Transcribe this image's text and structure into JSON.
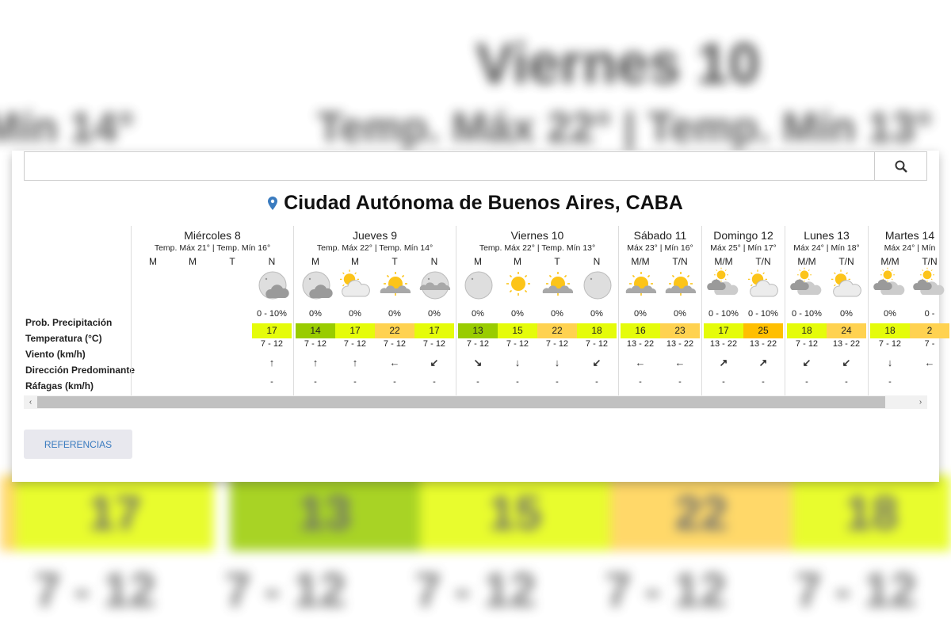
{
  "background": {
    "heading": "Viernes 10",
    "subheading": "Temp. Máx 22° | Temp. Mín 13°",
    "left_text": "Mín 14°",
    "band_values": [
      "17",
      "13",
      "15",
      "22",
      "18"
    ],
    "wind_values": [
      "7 - 12",
      "7 - 12",
      "7 - 12",
      "7 - 12",
      "7 - 12"
    ]
  },
  "search": {
    "value": "",
    "placeholder": "",
    "icon": "search-icon"
  },
  "location": {
    "icon": "map-pin-icon",
    "name": "Ciudad Autónoma de Buenos Aires, CABA",
    "pin_color": "#3a7bbf"
  },
  "row_labels": [
    "Prob. Precipitación",
    "Temperatura (°C)",
    "Viento (km/h)",
    "Dirección Predominante",
    "Ráfagas (km/h)"
  ],
  "temp_colors": {
    "cool": "#99cc00",
    "mild": "#e5fc0a",
    "warm": "#ffd250",
    "hot": "#ffbf00"
  },
  "days": [
    {
      "name": "Miércoles 8",
      "summary": "Temp. Máx 21° | Temp. Mín 16°",
      "periods": [
        {
          "label": "M"
        },
        {
          "label": "M"
        },
        {
          "label": "T"
        },
        {
          "label": "N",
          "icon": "night-cloudy",
          "prob": "0 - 10%",
          "temp": "17",
          "level": "mild",
          "wind": "7 - 12",
          "dir": "↑",
          "gust": "-"
        }
      ]
    },
    {
      "name": "Jueves 9",
      "summary": "Temp. Máx 22° | Temp. Mín 14°",
      "periods": [
        {
          "label": "M",
          "icon": "night-cloudy",
          "prob": "0%",
          "temp": "14",
          "level": "cool",
          "wind": "7 - 12",
          "dir": "↑",
          "gust": "-"
        },
        {
          "label": "M",
          "icon": "sun-cloud",
          "prob": "0%",
          "temp": "17",
          "level": "mild",
          "wind": "7 - 12",
          "dir": "↑",
          "gust": "-"
        },
        {
          "label": "T",
          "icon": "sun-behind-cloud",
          "prob": "0%",
          "temp": "22",
          "level": "warm",
          "wind": "7 - 12",
          "dir": "←",
          "gust": "-"
        },
        {
          "label": "N",
          "icon": "night-partly-cloudy",
          "prob": "0%",
          "temp": "17",
          "level": "mild",
          "wind": "7 - 12",
          "dir": "↙",
          "gust": "-"
        }
      ]
    },
    {
      "name": "Viernes 10",
      "summary": "Temp. Máx 22° | Temp. Mín 13°",
      "periods": [
        {
          "label": "M",
          "icon": "night-clear",
          "prob": "0%",
          "temp": "13",
          "level": "cool",
          "wind": "7 - 12",
          "dir": "↘",
          "gust": "-"
        },
        {
          "label": "M",
          "icon": "sun",
          "prob": "0%",
          "temp": "15",
          "level": "mild",
          "wind": "7 - 12",
          "dir": "↓",
          "gust": "-"
        },
        {
          "label": "T",
          "icon": "sun-behind-cloud",
          "prob": "0%",
          "temp": "22",
          "level": "warm",
          "wind": "7 - 12",
          "dir": "↓",
          "gust": "-"
        },
        {
          "label": "N",
          "icon": "night-clear",
          "prob": "0%",
          "temp": "18",
          "level": "mild",
          "wind": "7 - 12",
          "dir": "↙",
          "gust": "-"
        }
      ]
    },
    {
      "name": "Sábado 11",
      "summary": "Máx 23° | Mín 16°",
      "periods": [
        {
          "label": "M/M",
          "icon": "sun-behind-cloud",
          "prob": "0%",
          "temp": "16",
          "level": "mild",
          "wind": "13 - 22",
          "dir": "←",
          "gust": "-"
        },
        {
          "label": "T/N",
          "icon": "sun-behind-cloud",
          "prob": "0%",
          "temp": "23",
          "level": "warm",
          "wind": "13 - 22",
          "dir": "←",
          "gust": "-"
        }
      ]
    },
    {
      "name": "Domingo 12",
      "summary": "Máx 25° | Mín 17°",
      "periods": [
        {
          "label": "M/M",
          "icon": "cloudy-sun",
          "prob": "0 - 10%",
          "temp": "17",
          "level": "mild",
          "wind": "13 - 22",
          "dir": "↗",
          "gust": "-"
        },
        {
          "label": "T/N",
          "icon": "sun-cloud",
          "prob": "0 - 10%",
          "temp": "25",
          "level": "hot",
          "wind": "13 - 22",
          "dir": "↗",
          "gust": "-"
        }
      ]
    },
    {
      "name": "Lunes 13",
      "summary": "Máx 24° | Mín 18°",
      "periods": [
        {
          "label": "M/M",
          "icon": "cloudy-sun",
          "prob": "0 - 10%",
          "temp": "18",
          "level": "mild",
          "wind": "7 - 12",
          "dir": "↙",
          "gust": "-"
        },
        {
          "label": "T/N",
          "icon": "sun-cloud",
          "prob": "0%",
          "temp": "24",
          "level": "warm",
          "wind": "13 - 22",
          "dir": "↙",
          "gust": "-"
        }
      ]
    },
    {
      "name": "Martes 14",
      "summary": "Máx 24° | Mín",
      "periods": [
        {
          "label": "M/M",
          "icon": "cloudy-sun",
          "prob": "0%",
          "temp": "18",
          "level": "mild",
          "wind": "7 - 12",
          "dir": "↓",
          "gust": "-"
        },
        {
          "label": "T/N",
          "icon": "cloudy-sun",
          "prob": "0 - ",
          "temp": "2",
          "level": "warm",
          "wind": "7 - ",
          "dir": "←",
          "gust": ""
        }
      ]
    }
  ],
  "scrollbar": {
    "left_arrow": "‹",
    "right_arrow": "›"
  },
  "references_button": "REFERENCIAS"
}
